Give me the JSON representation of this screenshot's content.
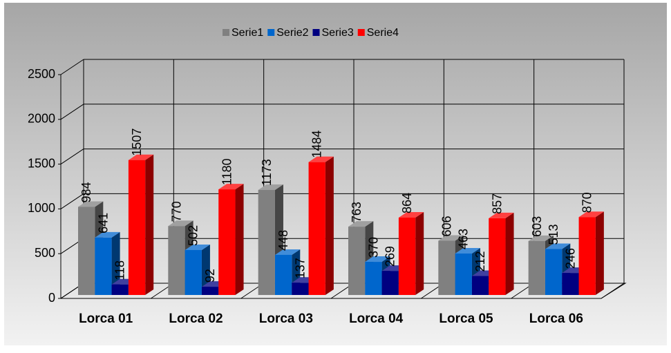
{
  "chart_data": {
    "type": "bar3d",
    "categories": [
      "Lorca 01",
      "Lorca 02",
      "Lorca 03",
      "Lorca 04",
      "Lorca 05",
      "Lorca 06"
    ],
    "series": [
      {
        "name": "Serie1",
        "color": "#808080",
        "values": [
          984,
          770,
          1173,
          763,
          606,
          603
        ]
      },
      {
        "name": "Serie2",
        "color": "#0066cc",
        "values": [
          641,
          502,
          448,
          370,
          463,
          513
        ]
      },
      {
        "name": "Serie3",
        "color": "#000080",
        "values": [
          118,
          92,
          137,
          269,
          212,
          246
        ]
      },
      {
        "name": "Serie4",
        "color": "#ff0000",
        "values": [
          1507,
          1180,
          1484,
          864,
          857,
          870
        ]
      }
    ],
    "ylim": [
      0,
      2500
    ],
    "yticks": [
      0,
      500,
      1000,
      1500,
      2000,
      2500
    ],
    "grid": true
  }
}
